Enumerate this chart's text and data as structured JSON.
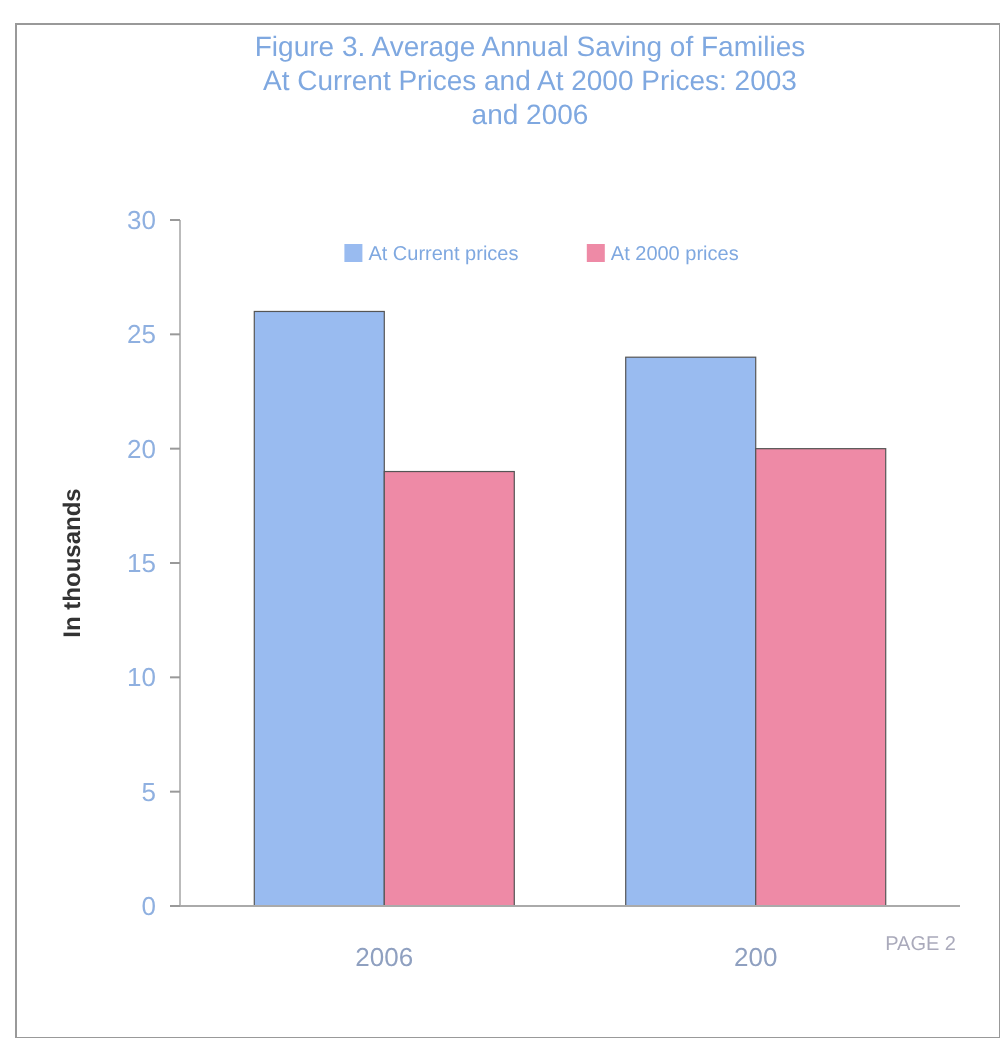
{
  "chart_data": {
    "type": "bar",
    "title": "Figure 3.  Average Annual Saving of Families At Current Prices and At 2000 Prices: 2003 and 2006",
    "ylabel": "In thousands",
    "categories": [
      "2006",
      "200"
    ],
    "series": [
      {
        "name": "At Current prices",
        "color": "#99bbf0",
        "values": [
          26,
          24
        ]
      },
      {
        "name": "At 2000 prices",
        "color": "#ee8aa6",
        "values": [
          19,
          20
        ]
      }
    ],
    "ylim": [
      0,
      30
    ],
    "yticks": [
      0,
      5,
      10,
      15,
      20,
      25,
      30
    ],
    "grid": false,
    "legend": "top",
    "annotations": [
      "PAGE 2"
    ]
  }
}
